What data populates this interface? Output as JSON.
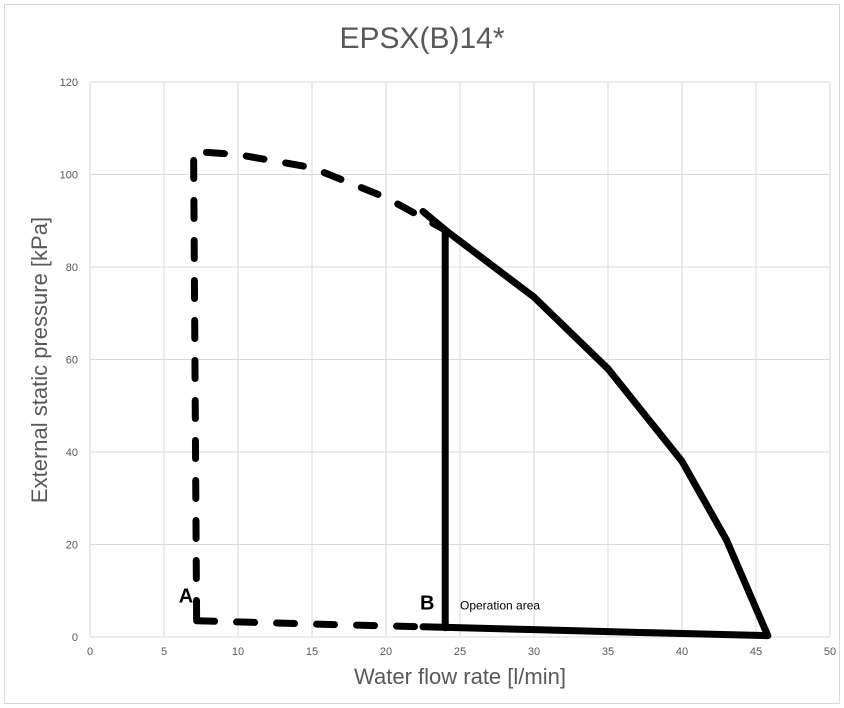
{
  "chart_data": {
    "type": "line",
    "title": "EPSX(B)14*",
    "xlabel": "Water flow rate [l/min]",
    "ylabel": "External static pressure [kPa]",
    "xlim": [
      0,
      50
    ],
    "ylim": [
      0,
      120
    ],
    "x_ticks": [
      "0",
      "5",
      "10",
      "15",
      "20",
      "25",
      "30",
      "35",
      "40",
      "45",
      "50"
    ],
    "y_ticks": [
      "0",
      "20",
      "40",
      "60",
      "80",
      "100",
      "120"
    ],
    "grid": true,
    "colors": {
      "curve": "#000000",
      "grid": "#d9d9d9",
      "text": "#595959"
    },
    "series": [
      {
        "style": "dashed",
        "points": [
          [
            7.2,
            4
          ],
          [
            7.0,
            105
          ],
          [
            10,
            104.3
          ],
          [
            15,
            101.5
          ],
          [
            20,
            95
          ],
          [
            24,
            88
          ]
        ]
      },
      {
        "style": "dashed",
        "points": [
          [
            7.2,
            3.5
          ],
          [
            15,
            2.8
          ],
          [
            22.5,
            2.2
          ]
        ]
      },
      {
        "style": "solid",
        "points": [
          [
            22.5,
            2.2
          ],
          [
            30,
            1.6
          ],
          [
            38,
            0.9
          ],
          [
            45.8,
            0.3
          ]
        ]
      },
      {
        "style": "solid",
        "points": [
          [
            24,
            88
          ],
          [
            24,
            2
          ]
        ]
      },
      {
        "style": "solid",
        "points": [
          [
            22.5,
            92
          ],
          [
            24,
            88
          ],
          [
            30,
            73.5
          ],
          [
            35,
            58
          ],
          [
            40,
            38
          ],
          [
            43,
            21
          ],
          [
            45.8,
            0.3
          ]
        ]
      }
    ],
    "annotations": [
      {
        "text": "A",
        "x": 6.0,
        "y": 7.5
      },
      {
        "text": "B",
        "x": 22.3,
        "y": 6.0
      },
      {
        "text": "Operation area",
        "x": 25.0,
        "y": 6.0
      }
    ]
  }
}
